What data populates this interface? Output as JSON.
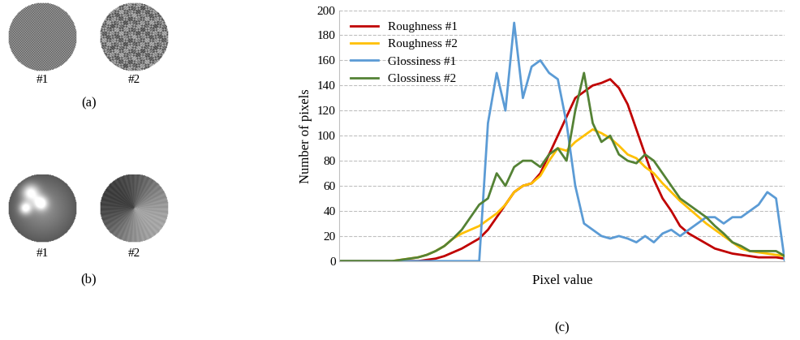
{
  "images": [
    {
      "caption": "(a)",
      "items": [
        "#1",
        "#2"
      ]
    },
    {
      "caption": "(b)",
      "items": [
        "#1",
        "#2"
      ]
    }
  ],
  "chart_data": {
    "type": "line",
    "caption": "(c)",
    "x_label": "Pixel value",
    "y_label": "Number of pixels",
    "x": [
      0,
      5,
      10,
      15,
      20,
      25,
      30,
      35,
      40,
      45,
      50,
      55,
      60,
      65,
      70,
      75,
      80,
      85,
      90,
      95,
      100,
      105,
      110,
      115,
      120,
      125,
      130,
      135,
      140,
      145,
      150,
      155,
      160,
      165,
      170,
      175,
      180,
      185,
      190,
      195,
      200,
      205,
      210,
      215,
      220,
      225,
      230,
      235,
      240,
      245,
      250,
      255
    ],
    "xlim": [
      0,
      255
    ],
    "ylim": [
      0,
      200
    ],
    "yticks": [
      0,
      20,
      40,
      60,
      80,
      100,
      120,
      140,
      160,
      180,
      200
    ],
    "grid": true,
    "legend": "upper left",
    "tick_labels": "y",
    "series": [
      {
        "name": "Roughness #1",
        "color": "#c00000",
        "values": [
          0,
          0,
          0,
          0,
          0,
          0,
          0,
          0,
          0,
          0,
          1,
          2,
          4,
          7,
          10,
          14,
          18,
          25,
          35,
          45,
          55,
          60,
          62,
          70,
          85,
          100,
          115,
          130,
          135,
          140,
          142,
          145,
          138,
          125,
          105,
          85,
          65,
          50,
          40,
          28,
          22,
          18,
          14,
          10,
          8,
          6,
          5,
          4,
          3,
          3,
          3,
          2
        ]
      },
      {
        "name": "Roughness #2",
        "color": "#ffc000",
        "values": [
          0,
          0,
          0,
          0,
          0,
          0,
          0,
          1,
          2,
          3,
          5,
          8,
          12,
          18,
          22,
          25,
          28,
          33,
          38,
          45,
          55,
          60,
          62,
          68,
          80,
          90,
          88,
          95,
          100,
          105,
          102,
          98,
          92,
          85,
          82,
          75,
          70,
          62,
          55,
          48,
          42,
          36,
          30,
          25,
          20,
          15,
          10,
          8,
          7,
          6,
          5,
          4
        ]
      },
      {
        "name": "Glossiness #1",
        "color": "#5b9bd5",
        "values": [
          0,
          0,
          0,
          0,
          0,
          0,
          0,
          0,
          0,
          0,
          0,
          0,
          0,
          0,
          0,
          0,
          0,
          110,
          150,
          120,
          190,
          130,
          155,
          160,
          150,
          145,
          110,
          60,
          30,
          25,
          20,
          18,
          20,
          18,
          15,
          20,
          15,
          22,
          25,
          20,
          25,
          30,
          35,
          35,
          30,
          35,
          35,
          40,
          45,
          55,
          50,
          0
        ]
      },
      {
        "name": "Glossiness #2",
        "color": "#548235",
        "values": [
          0,
          0,
          0,
          0,
          0,
          0,
          0,
          1,
          2,
          3,
          5,
          8,
          12,
          18,
          25,
          35,
          45,
          50,
          70,
          60,
          75,
          80,
          80,
          75,
          85,
          90,
          80,
          120,
          150,
          110,
          95,
          100,
          85,
          80,
          78,
          85,
          80,
          70,
          60,
          50,
          45,
          40,
          35,
          28,
          22,
          15,
          12,
          8,
          8,
          8,
          8,
          4
        ]
      }
    ]
  }
}
